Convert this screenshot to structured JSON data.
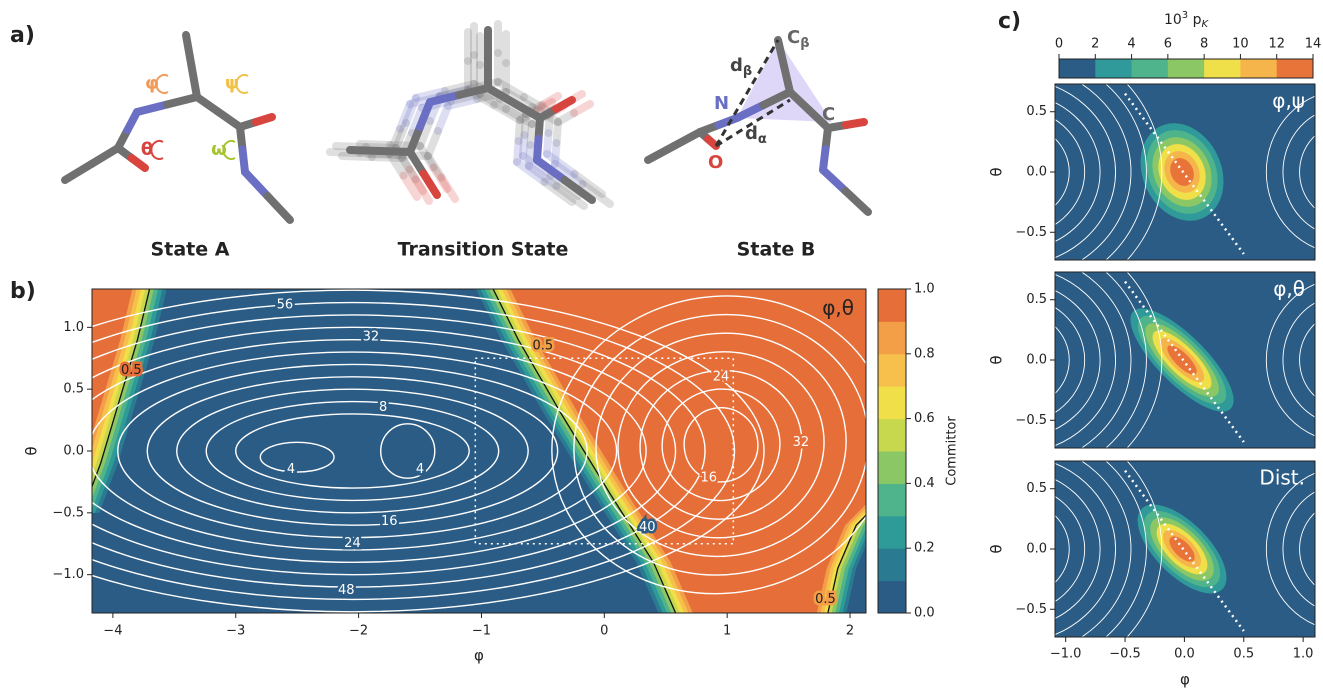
{
  "figure": {
    "panel_a": {
      "label": "a)",
      "captions": [
        "State A",
        "Transition State",
        "State B"
      ],
      "dihedrals": [
        "φ",
        "ψ",
        "θ",
        "ω"
      ],
      "atoms": [
        "N",
        "C",
        "O"
      ],
      "c_beta": [
        "C",
        "β"
      ],
      "d_beta": [
        "d",
        "β"
      ],
      "d_alpha": [
        "d",
        "α"
      ]
    },
    "panel_b": {
      "label": "b)",
      "annotation": "φ,θ",
      "xlabel": "φ",
      "ylabel": "θ",
      "xlim": [
        -4.17,
        2.13
      ],
      "ylim": [
        -1.31,
        1.31
      ],
      "xticks": [
        {
          "value": -4,
          "label": "−4"
        },
        {
          "value": -3,
          "label": "−3"
        },
        {
          "value": -2,
          "label": "−2"
        },
        {
          "value": -1,
          "label": "−1"
        },
        0,
        1,
        2
      ],
      "yticks": [
        {
          "value": -1,
          "label": "−1.0"
        },
        {
          "value": -0.5,
          "label": "−0.5"
        },
        {
          "value": 0,
          "label": "0.0"
        },
        {
          "value": 0.5,
          "label": "0.5"
        },
        {
          "value": 1,
          "label": "1.0"
        }
      ],
      "contour_labels": [
        "56",
        "32",
        "8",
        "4",
        "4",
        "16",
        "24",
        "48",
        "24",
        "16",
        "32",
        "40",
        "0.5",
        "0.5",
        "0.5"
      ],
      "colorbar_label": "Committor",
      "colorbar_lim": [
        0,
        1
      ],
      "colorbar_ticks": [
        {
          "value": 0,
          "label": "0.0"
        },
        {
          "value": 0.2,
          "label": "0.2"
        },
        {
          "value": 0.4,
          "label": "0.4"
        },
        {
          "value": 0.6,
          "label": "0.6"
        },
        {
          "value": 0.8,
          "label": "0.8"
        },
        {
          "value": 1,
          "label": "1.0"
        }
      ],
      "colors": [
        "#2b5c85",
        "#2a7b91",
        "#2f9b98",
        "#4fb38b",
        "#8cc765",
        "#c7d84f",
        "#f1df4a",
        "#f7c04c",
        "#f39f47",
        "#e66f39"
      ]
    },
    "panel_c": {
      "label": "c)",
      "colorbar_title": [
        "10",
        "3",
        " p",
        "K"
      ],
      "colorbar_lim": [
        0,
        14
      ],
      "colorbar_ticks": [
        0,
        2,
        4,
        6,
        8,
        10,
        12,
        14
      ],
      "colors": [
        "#2b5c85",
        "#2f9a99",
        "#4fb38b",
        "#8cc765",
        "#efe04a",
        "#f6b54b",
        "#e8743a"
      ],
      "xlim": [
        -1.09,
        1.1
      ],
      "ylim": [
        -0.73,
        0.73
      ],
      "xticks": [
        {
          "value": -1,
          "label": "−1.0"
        },
        {
          "value": -0.5,
          "label": "−0.5"
        },
        {
          "value": 0,
          "label": "0.0"
        },
        {
          "value": 0.5,
          "label": "0.5"
        },
        {
          "value": 1,
          "label": "1.0"
        }
      ],
      "yticks": [
        {
          "value": -0.5,
          "label": "−0.5"
        },
        {
          "value": 0,
          "label": "0.0"
        },
        {
          "value": 0.5,
          "label": "0.5"
        }
      ],
      "xlabel": "φ",
      "ylabel": "θ",
      "annotations": [
        "φ,ψ",
        "φ,θ",
        "Dist."
      ]
    }
  }
}
